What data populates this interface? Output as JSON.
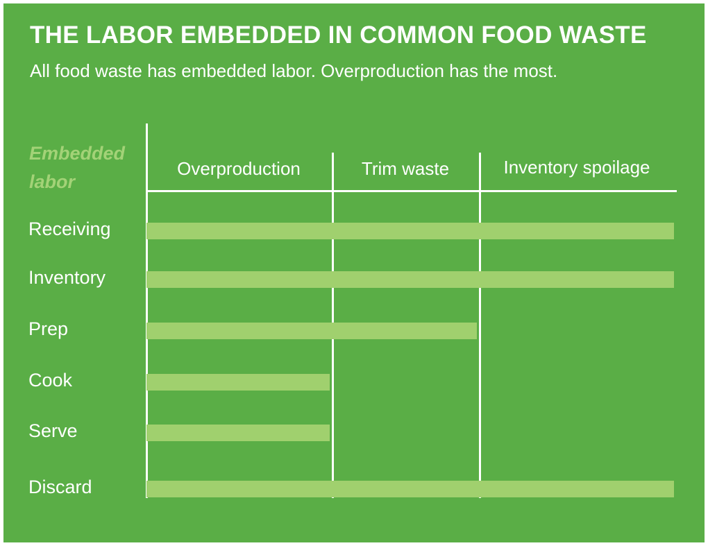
{
  "title": "THE LABOR EMBEDDED IN COMMON FOOD WASTE",
  "subtitle": "All food waste has embedded labor. Overproduction has the most.",
  "colors": {
    "background": "#5aae46",
    "bar": "#a0d06e",
    "row_header": "#a3d277",
    "text": "#ffffff"
  },
  "chart_data": {
    "type": "table",
    "row_header": "Embedded labor",
    "columns": [
      "Overproduction",
      "Trim waste",
      "Inventory spoilage"
    ],
    "rows": [
      {
        "label": "Receiving",
        "included": [
          true,
          true,
          true
        ]
      },
      {
        "label": "Inventory",
        "included": [
          true,
          true,
          true
        ]
      },
      {
        "label": "Prep",
        "included": [
          true,
          true,
          false
        ]
      },
      {
        "label": "Cook",
        "included": [
          true,
          false,
          false
        ]
      },
      {
        "label": "Serve",
        "included": [
          true,
          false,
          false
        ]
      },
      {
        "label": "Discard",
        "included": [
          true,
          true,
          true
        ]
      }
    ]
  }
}
